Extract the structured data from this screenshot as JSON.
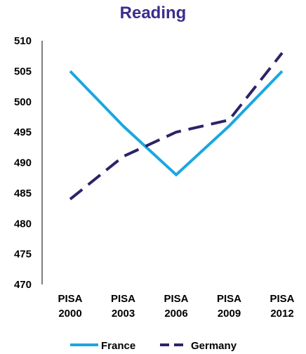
{
  "chart_data": {
    "type": "line",
    "title": "Reading",
    "title_color": "#3b2e8c",
    "categories": [
      [
        "PISA",
        "2000"
      ],
      [
        "PISA",
        "2003"
      ],
      [
        "PISA",
        "2006"
      ],
      [
        "PISA",
        "2009"
      ],
      [
        "PISA",
        "2012"
      ]
    ],
    "series": [
      {
        "name": "France",
        "values": [
          505,
          496,
          488,
          496,
          505
        ],
        "color": "#1aa7e0",
        "style": "solid"
      },
      {
        "name": "Germany",
        "values": [
          484,
          491,
          495,
          497,
          508
        ],
        "color": "#2b2369",
        "style": "dashed"
      }
    ],
    "ylim": [
      470,
      510
    ],
    "yticks": [
      "470",
      "475",
      "480",
      "485",
      "490",
      "495",
      "500",
      "505",
      "510"
    ],
    "xlabel": "",
    "ylabel": "",
    "grid": false,
    "legend_position": "bottom"
  }
}
